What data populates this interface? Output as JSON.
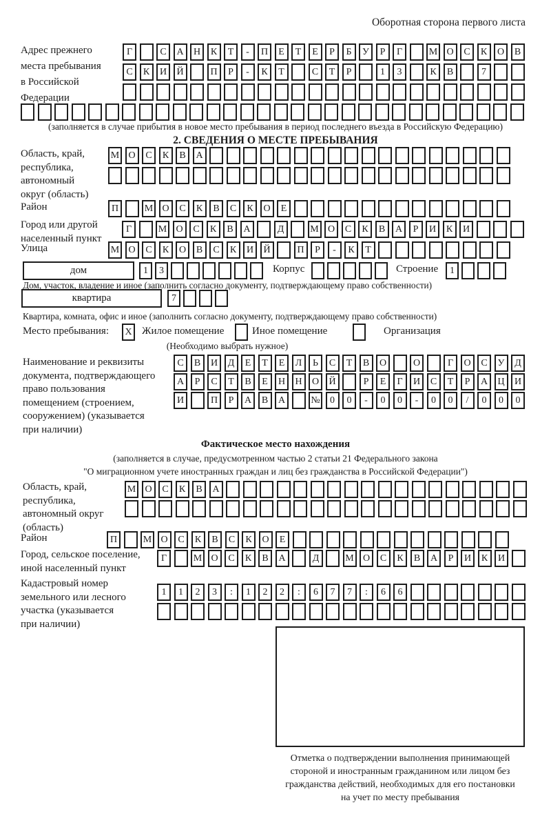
{
  "page": {
    "corner_note": "Оборотная сторона первого листа"
  },
  "prev_address": {
    "label_lines": [
      "Адрес прежнего",
      "места пребывания",
      "в Российской",
      "Федерации"
    ],
    "rows": [
      "Г САНКТ-ПЕТЕРБУРГ МОСКОВ",
      "СКИЙ ПР-КТ СТР 13 КВ 7",
      "",
      ""
    ],
    "note": "(заполняется в случае прибытия в новое место пребывания в период последнего въезда в Российскую Федерацию)"
  },
  "section2": {
    "title": "2. СВЕДЕНИЯ О МЕСТЕ ПРЕБЫВАНИЯ",
    "region": {
      "label_lines": [
        "Область, край,",
        "республика,",
        "автономный",
        "округ (область)"
      ],
      "rows": [
        "МОСКВА",
        ""
      ]
    },
    "district": {
      "label": "Район",
      "value": "П МОСКВСКОЕ"
    },
    "city": {
      "label_lines": [
        "Город или другой",
        "населенный пункт"
      ],
      "value": "Г МОСКВА Д МОСКВАРИКИ"
    },
    "street": {
      "label": "Улица",
      "value": "МОСКОВСКИЙ ПР-КТ"
    },
    "house": {
      "box_label": "дом",
      "value": "13",
      "korpus_label": "Корпус",
      "korpus_value": "",
      "stroenie_label": "Строение",
      "stroenie_value": "1",
      "caption": "Дом, участок, владение и иное (заполнить согласно документу, подтверждающему право собственности)"
    },
    "apartment": {
      "box_label": "квартира",
      "value": "7",
      "caption": "Квартира, комната, офис и иное (заполнить согласно документу, подтверждающему право собственности)"
    },
    "stay_type": {
      "label": "Место пребывания:",
      "checked1": "X",
      "option1": "Жилое помещение",
      "checked2": "",
      "option2": "Иное помещение",
      "checked3": "",
      "option3": "Организация",
      "note": "(Необходимо выбрать нужное)"
    },
    "document": {
      "label_lines": [
        "Наименование и реквизиты",
        "документа, подтверждающего",
        "право пользования",
        "помещением (строением,",
        "сооружением) (указывается",
        "при наличии)"
      ],
      "rows": [
        "СВИДЕТЕЛЬСТВО О ГОСУД",
        "АРСТВЕННОЙ РЕГИСТРАЦИ",
        "И ПРАВА №00-00-00/000"
      ]
    }
  },
  "factual": {
    "title": "Фактическое место нахождения",
    "subtitle_lines": [
      "(заполняется в случае, предусмотренном частью 2 статьи 21 Федерального закона",
      "\"О миграционном учете иностранных граждан и лиц без гражданства в Российской Федерации\")"
    ],
    "region": {
      "label_lines": [
        "Область, край,",
        "республика,",
        "автономный округ",
        "(область)"
      ],
      "rows": [
        "МОСКВА",
        ""
      ]
    },
    "district": {
      "label": "Район",
      "value": "П МОСКВСКОЕ"
    },
    "city": {
      "label_lines": [
        "Город, сельское поселение,",
        "иной населенный пункт"
      ],
      "value": "Г МОСКВА Д МОСКВАРИКИ"
    },
    "cadastre": {
      "label_lines": [
        "Кадастровый номер",
        "земельного или лесного",
        "участка (указывается",
        "при наличии)"
      ],
      "rows": [
        "1123:122:677:66",
        ""
      ]
    }
  },
  "stamp": {
    "caption_lines": [
      "Отметка о подтверждении выполнения принимающей",
      "стороной и иностранным гражданином или лицом без",
      "гражданства действий, необходимых для его постановки",
      "на учет по месту пребывания"
    ]
  }
}
